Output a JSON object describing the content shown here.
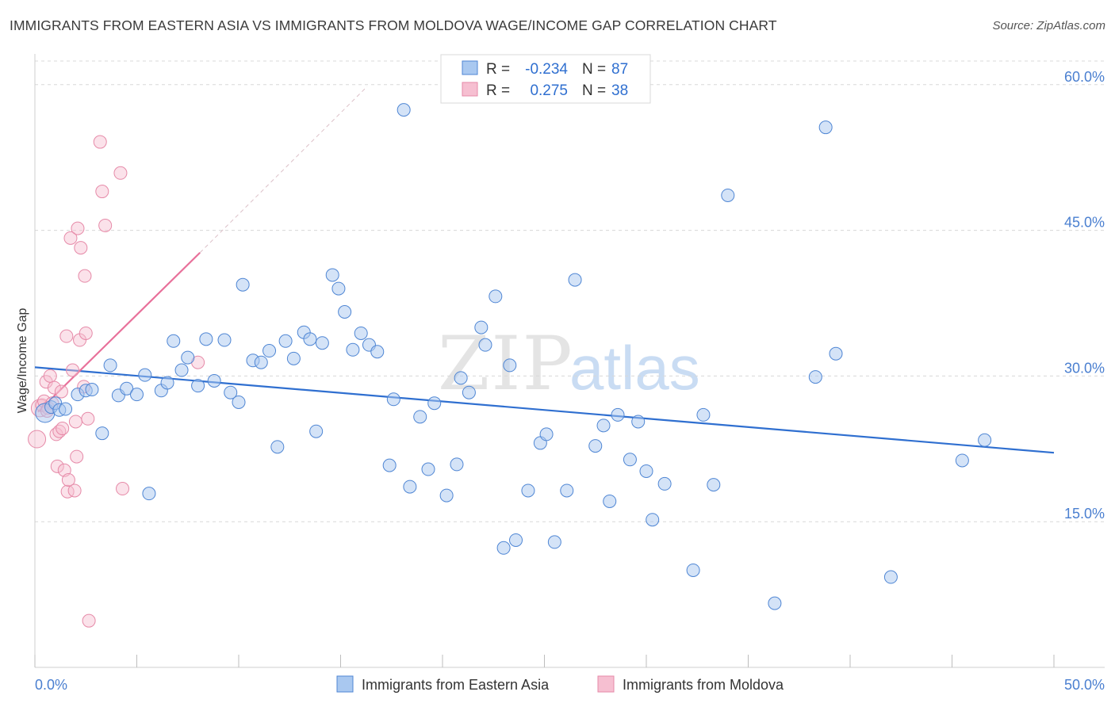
{
  "title": "IMMIGRANTS FROM EASTERN ASIA VS IMMIGRANTS FROM MOLDOVA WAGE/INCOME GAP CORRELATION CHART",
  "source": "Source: ZipAtlas.com",
  "watermark": {
    "zip": "ZIP",
    "atlas": "atlas"
  },
  "colors": {
    "blue_fill": "#a9c8f0",
    "blue_stroke": "#4f86d4",
    "blue_line": "#2f6fd0",
    "pink_fill": "#f6bfd1",
    "pink_stroke": "#e68aa8",
    "pink_line": "#e8709a",
    "grid": "#d8d8d8",
    "axis_text": "#4a7fd0"
  },
  "legend": {
    "rows": [
      {
        "r_label": "R =",
        "r_value": "-0.234",
        "n_label": "N =",
        "n_value": "87"
      },
      {
        "r_label": "R =",
        "r_value": "0.275",
        "n_label": "N =",
        "n_value": "38"
      }
    ]
  },
  "chart_data": {
    "type": "scatter",
    "title": "IMMIGRANTS FROM EASTERN ASIA VS IMMIGRANTS FROM MOLDOVA WAGE/INCOME GAP CORRELATION CHART",
    "xlabel": "",
    "ylabel": "Wage/Income Gap",
    "xlim": [
      0,
      50
    ],
    "ylim": [
      0,
      63
    ],
    "x_ticks": [
      "0.0%",
      "50.0%"
    ],
    "y_ticks": [
      {
        "value": 15,
        "label": "15.0%"
      },
      {
        "value": 30,
        "label": "30.0%"
      },
      {
        "value": 45,
        "label": "45.0%"
      },
      {
        "value": 60,
        "label": "60.0%"
      }
    ],
    "grid": true,
    "legend_placement": "top-center",
    "series": [
      {
        "name": "Immigrants from Eastern Asia",
        "color": "#a9c8f0",
        "trend": {
          "x": [
            0,
            50
          ],
          "y": [
            30.9,
            22.1
          ]
        },
        "points": [
          [
            0.5,
            26.2
          ],
          [
            0.8,
            26.8
          ],
          [
            1.0,
            27.2
          ],
          [
            1.2,
            26.5
          ],
          [
            1.5,
            26.6
          ],
          [
            2.1,
            28.1
          ],
          [
            2.5,
            28.5
          ],
          [
            2.8,
            28.6
          ],
          [
            3.3,
            24.1
          ],
          [
            3.7,
            31.1
          ],
          [
            4.1,
            28.0
          ],
          [
            4.5,
            28.7
          ],
          [
            5.0,
            28.1
          ],
          [
            5.4,
            30.1
          ],
          [
            5.6,
            17.9
          ],
          [
            6.2,
            28.5
          ],
          [
            6.5,
            29.3
          ],
          [
            6.8,
            33.6
          ],
          [
            7.2,
            30.6
          ],
          [
            7.5,
            31.9
          ],
          [
            8.0,
            29.0
          ],
          [
            8.4,
            33.8
          ],
          [
            8.8,
            29.5
          ],
          [
            9.3,
            33.7
          ],
          [
            9.6,
            28.3
          ],
          [
            10.0,
            27.3
          ],
          [
            10.2,
            39.4
          ],
          [
            10.7,
            31.6
          ],
          [
            11.1,
            31.4
          ],
          [
            11.5,
            32.6
          ],
          [
            11.9,
            22.7
          ],
          [
            12.3,
            33.6
          ],
          [
            12.7,
            31.8
          ],
          [
            13.2,
            34.5
          ],
          [
            13.5,
            33.8
          ],
          [
            13.8,
            24.3
          ],
          [
            14.1,
            33.4
          ],
          [
            14.6,
            40.4
          ],
          [
            14.9,
            39.0
          ],
          [
            15.2,
            36.6
          ],
          [
            15.6,
            32.7
          ],
          [
            16.0,
            34.4
          ],
          [
            16.4,
            33.2
          ],
          [
            16.8,
            32.5
          ],
          [
            17.4,
            20.8
          ],
          [
            17.6,
            27.6
          ],
          [
            18.1,
            57.4
          ],
          [
            18.4,
            18.6
          ],
          [
            18.9,
            25.8
          ],
          [
            19.3,
            20.4
          ],
          [
            19.6,
            27.2
          ],
          [
            20.2,
            17.7
          ],
          [
            20.7,
            20.9
          ],
          [
            20.9,
            29.8
          ],
          [
            21.3,
            28.3
          ],
          [
            21.9,
            35.0
          ],
          [
            22.1,
            33.2
          ],
          [
            22.6,
            38.2
          ],
          [
            23.0,
            12.3
          ],
          [
            23.3,
            31.1
          ],
          [
            23.6,
            13.1
          ],
          [
            24.2,
            18.2
          ],
          [
            24.8,
            23.1
          ],
          [
            25.1,
            24.0
          ],
          [
            25.5,
            12.9
          ],
          [
            26.1,
            18.2
          ],
          [
            26.5,
            39.9
          ],
          [
            27.5,
            22.8
          ],
          [
            27.9,
            24.9
          ],
          [
            28.2,
            17.1
          ],
          [
            28.6,
            26.0
          ],
          [
            29.2,
            21.4
          ],
          [
            29.6,
            25.3
          ],
          [
            30.0,
            20.2
          ],
          [
            30.3,
            15.2
          ],
          [
            30.9,
            18.9
          ],
          [
            32.3,
            10.0
          ],
          [
            32.8,
            26.0
          ],
          [
            33.3,
            18.8
          ],
          [
            34.0,
            48.6
          ],
          [
            36.3,
            6.6
          ],
          [
            38.3,
            29.9
          ],
          [
            38.8,
            55.6
          ],
          [
            39.3,
            32.3
          ],
          [
            42.0,
            9.3
          ],
          [
            45.5,
            21.3
          ],
          [
            46.6,
            23.4
          ]
        ]
      },
      {
        "name": "Immigrants from Moldova",
        "color": "#f6bfd1",
        "trend": {
          "x": [
            0.15,
            8.1
          ],
          "y": [
            26.3,
            42.7
          ]
        },
        "trend_extension": {
          "x": [
            8.1,
            16.3
          ],
          "y": [
            42.7,
            59.8
          ]
        },
        "points": [
          [
            0.1,
            23.5
          ],
          [
            0.25,
            26.7
          ],
          [
            0.35,
            27.0
          ],
          [
            0.45,
            27.4
          ],
          [
            0.55,
            29.4
          ],
          [
            0.65,
            26.7
          ],
          [
            0.75,
            30.0
          ],
          [
            0.85,
            27.2
          ],
          [
            0.95,
            28.8
          ],
          [
            1.05,
            24.0
          ],
          [
            1.1,
            20.7
          ],
          [
            1.2,
            24.3
          ],
          [
            1.3,
            28.4
          ],
          [
            1.35,
            24.6
          ],
          [
            1.45,
            20.3
          ],
          [
            1.55,
            34.1
          ],
          [
            1.6,
            18.1
          ],
          [
            1.65,
            19.3
          ],
          [
            1.75,
            44.2
          ],
          [
            1.85,
            30.6
          ],
          [
            1.95,
            18.2
          ],
          [
            2.0,
            25.3
          ],
          [
            2.05,
            21.7
          ],
          [
            2.1,
            45.2
          ],
          [
            2.2,
            33.7
          ],
          [
            2.25,
            43.2
          ],
          [
            2.4,
            28.9
          ],
          [
            2.45,
            40.3
          ],
          [
            2.5,
            34.4
          ],
          [
            2.6,
            25.6
          ],
          [
            2.65,
            4.8
          ],
          [
            3.2,
            54.1
          ],
          [
            3.3,
            49.0
          ],
          [
            3.45,
            45.5
          ],
          [
            4.2,
            50.9
          ],
          [
            4.3,
            18.4
          ],
          [
            8.0,
            31.4
          ],
          [
            0.6,
            26.4
          ]
        ]
      }
    ]
  },
  "bottom_legend": [
    {
      "label": "Immigrants from Eastern Asia"
    },
    {
      "label": "Immigrants from Moldova"
    }
  ]
}
